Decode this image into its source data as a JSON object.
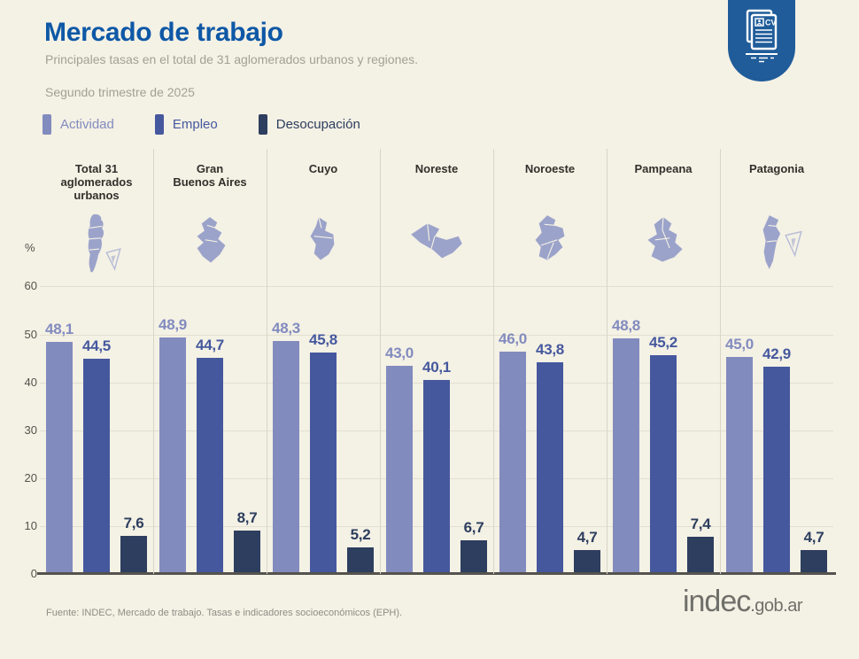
{
  "header": {
    "title": "Mercado de trabajo",
    "subtitle_line1": "Principales tasas en el total de 31 aglomerados urbanos y regiones.",
    "subtitle_line2": "Segundo trimestre de 2025"
  },
  "branding": {
    "badge_icon": "cv-document-icon",
    "badge_text": "CV",
    "logo_main": "indec",
    "logo_suffix": ".gob.ar"
  },
  "colors": {
    "background": "#f4f1e5",
    "title_blue": "#0e58a6",
    "badge_blue": "#1f5c99",
    "grid": "#e3dfd0",
    "axis": "#55534d"
  },
  "chart_data": {
    "type": "bar",
    "title": "Mercado de trabajo",
    "subtitle": "Principales tasas en el total de 31 aglomerados urbanos y regiones. Segundo trimestre de 2025",
    "ylabel": "%",
    "ylim": [
      0,
      62
    ],
    "yticks": [
      0,
      10,
      20,
      30,
      40,
      50,
      60
    ],
    "grid": true,
    "legend_position": "top-left",
    "categories": [
      "Total 31 aglomerados urbanos",
      "Gran Buenos Aires",
      "Cuyo",
      "Noreste",
      "Noroeste",
      "Pampeana",
      "Patagonia"
    ],
    "categories_display": [
      "Total 31\naglomerados\nurbanos",
      "Gran\nBuenos Aires",
      "Cuyo",
      "Noreste",
      "Noroeste",
      "Pampeana",
      "Patagonia"
    ],
    "map_icons": [
      "total-31-argentina-map-icon",
      "gran-buenos-aires-map-icon",
      "cuyo-map-icon",
      "noreste-map-icon",
      "noroeste-map-icon",
      "pampeana-map-icon",
      "patagonia-map-icon"
    ],
    "series": [
      {
        "name": "Actividad",
        "color": "#828bbe",
        "values": [
          48.1,
          48.9,
          48.3,
          43.0,
          46.0,
          48.8,
          45.0
        ],
        "labels": [
          "48,1",
          "48,9",
          "48,3",
          "43,0",
          "46,0",
          "48,8",
          "45,0"
        ]
      },
      {
        "name": "Empleo",
        "color": "#45589e",
        "values": [
          44.5,
          44.7,
          45.8,
          40.1,
          43.8,
          45.2,
          42.9
        ],
        "labels": [
          "44,5",
          "44,7",
          "45,8",
          "40,1",
          "43,8",
          "45,2",
          "42,9"
        ]
      },
      {
        "name": "Desocupación",
        "color": "#2d3e5e",
        "values": [
          7.6,
          8.7,
          5.2,
          6.7,
          4.7,
          7.4,
          4.7
        ],
        "labels": [
          "7,6",
          "8,7",
          "5,2",
          "6,7",
          "4,7",
          "7,4",
          "4,7"
        ]
      }
    ]
  },
  "footer": {
    "source": "Fuente: INDEC, Mercado de trabajo. Tasas e indicadores socioeconómicos (EPH)."
  }
}
